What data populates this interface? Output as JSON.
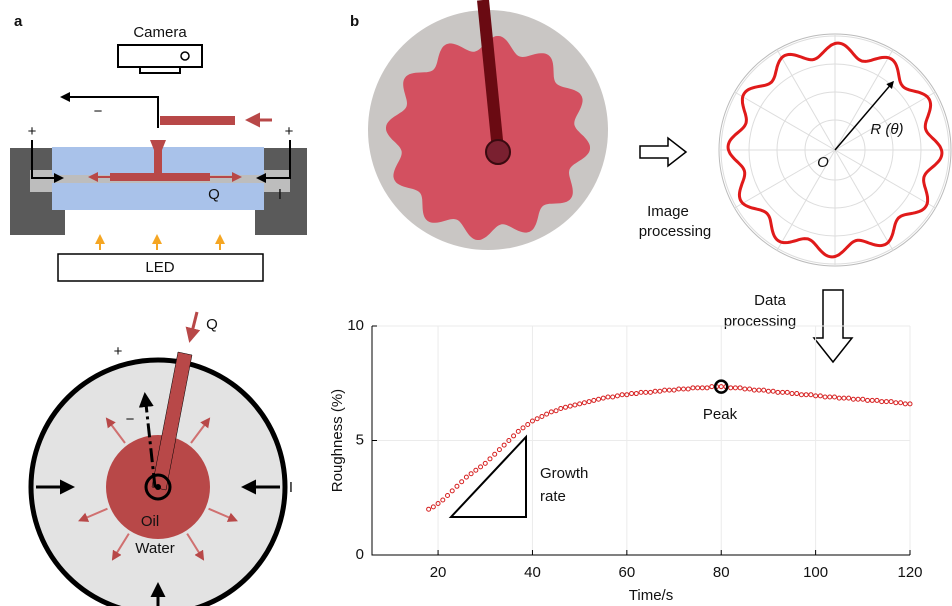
{
  "diagram": {
    "panel_a": "a",
    "panel_b": "b",
    "camera": "Camera",
    "led": "LED",
    "q_top": "Q",
    "q_bottom": "Q",
    "plus_left": "+",
    "plus_right": "+",
    "minus_top": "−",
    "i_top": "I",
    "plus_bottom": "+",
    "minus_bottom": "−",
    "i_bottom": "I",
    "oil": "Oil",
    "water": "Water",
    "image_processing": [
      "Image",
      "processing"
    ],
    "data_processing": [
      "Data",
      "processing"
    ],
    "radius_label": "R (θ)",
    "origin_label": "O"
  },
  "chart_data": {
    "type": "scatter",
    "xlabel": "Time/s",
    "ylabel": "Roughness (%)",
    "xlim": [
      6,
      120
    ],
    "ylim": [
      0,
      10
    ],
    "xticks": [
      20,
      40,
      60,
      80,
      100,
      120
    ],
    "yticks": [
      0,
      5,
      10
    ],
    "grid": true,
    "annotations": [
      "Peak",
      "Growth",
      "rate"
    ],
    "series": [
      {
        "color": "#d62020",
        "x": [
          18,
          19,
          20,
          21,
          22,
          23,
          24,
          25,
          26,
          27,
          28,
          29,
          30,
          31,
          32,
          33,
          34,
          35,
          36,
          37,
          38,
          39,
          40,
          41,
          42,
          43,
          44,
          45,
          46,
          47,
          48,
          49,
          50,
          51,
          52,
          53,
          54,
          55,
          56,
          57,
          58,
          59,
          60,
          61,
          62,
          63,
          64,
          65,
          66,
          67,
          68,
          69,
          70,
          71,
          72,
          73,
          74,
          75,
          76,
          77,
          78,
          79,
          80,
          81,
          82,
          83,
          84,
          85,
          86,
          87,
          88,
          89,
          90,
          91,
          92,
          93,
          94,
          95,
          96,
          97,
          98,
          99,
          100,
          101,
          102,
          103,
          104,
          105,
          106,
          107,
          108,
          109,
          110,
          111,
          112,
          113,
          114,
          115,
          116,
          117,
          118,
          119,
          120
        ],
        "values": [
          2.0,
          2.1,
          2.25,
          2.4,
          2.6,
          2.8,
          3.0,
          3.2,
          3.4,
          3.55,
          3.7,
          3.85,
          4.0,
          4.2,
          4.4,
          4.6,
          4.8,
          5.0,
          5.2,
          5.4,
          5.55,
          5.7,
          5.85,
          5.95,
          6.05,
          6.15,
          6.25,
          6.3,
          6.4,
          6.45,
          6.5,
          6.55,
          6.6,
          6.65,
          6.7,
          6.75,
          6.8,
          6.85,
          6.9,
          6.9,
          6.95,
          7.0,
          7.0,
          7.05,
          7.05,
          7.1,
          7.1,
          7.1,
          7.15,
          7.15,
          7.2,
          7.2,
          7.2,
          7.25,
          7.25,
          7.25,
          7.3,
          7.3,
          7.3,
          7.3,
          7.35,
          7.35,
          7.35,
          7.35,
          7.3,
          7.3,
          7.3,
          7.25,
          7.25,
          7.2,
          7.2,
          7.2,
          7.15,
          7.15,
          7.1,
          7.1,
          7.1,
          7.05,
          7.05,
          7.0,
          7.0,
          7.0,
          6.95,
          6.95,
          6.9,
          6.9,
          6.9,
          6.85,
          6.85,
          6.85,
          6.8,
          6.8,
          6.8,
          6.75,
          6.75,
          6.75,
          6.7,
          6.7,
          6.7,
          6.65,
          6.65,
          6.6,
          6.6
        ]
      }
    ]
  }
}
